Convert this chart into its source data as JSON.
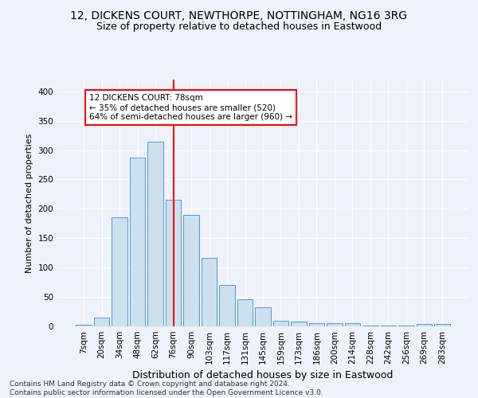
{
  "title1": "12, DICKENS COURT, NEWTHORPE, NOTTINGHAM, NG16 3RG",
  "title2": "Size of property relative to detached houses in Eastwood",
  "xlabel": "Distribution of detached houses by size in Eastwood",
  "ylabel": "Number of detached properties",
  "bar_color": "#cce0f0",
  "bar_edge_color": "#5599cc",
  "categories": [
    "7sqm",
    "20sqm",
    "34sqm",
    "48sqm",
    "62sqm",
    "76sqm",
    "90sqm",
    "103sqm",
    "117sqm",
    "131sqm",
    "145sqm",
    "159sqm",
    "173sqm",
    "186sqm",
    "200sqm",
    "214sqm",
    "228sqm",
    "242sqm",
    "256sqm",
    "269sqm",
    "283sqm"
  ],
  "values": [
    3,
    15,
    185,
    287,
    314,
    215,
    190,
    117,
    70,
    46,
    32,
    10,
    8,
    6,
    5,
    5,
    2,
    2,
    2,
    4,
    4
  ],
  "vline_index": 5,
  "annotation_text": "12 DICKENS COURT: 78sqm\n← 35% of detached houses are smaller (520)\n64% of semi-detached houses are larger (960) →",
  "annotation_box_color": "white",
  "annotation_box_edgecolor": "red",
  "vline_color": "red",
  "ylim": [
    0,
    420
  ],
  "yticks": [
    0,
    50,
    100,
    150,
    200,
    250,
    300,
    350,
    400
  ],
  "footnote": "Contains HM Land Registry data © Crown copyright and database right 2024.\nContains public sector information licensed under the Open Government Licence v3.0.",
  "background_color": "#eef2fa",
  "grid_color": "white",
  "title1_fontsize": 10,
  "title2_fontsize": 9,
  "xlabel_fontsize": 9,
  "ylabel_fontsize": 8,
  "tick_fontsize": 7.5,
  "annotation_fontsize": 7.5,
  "footnote_fontsize": 6.5
}
